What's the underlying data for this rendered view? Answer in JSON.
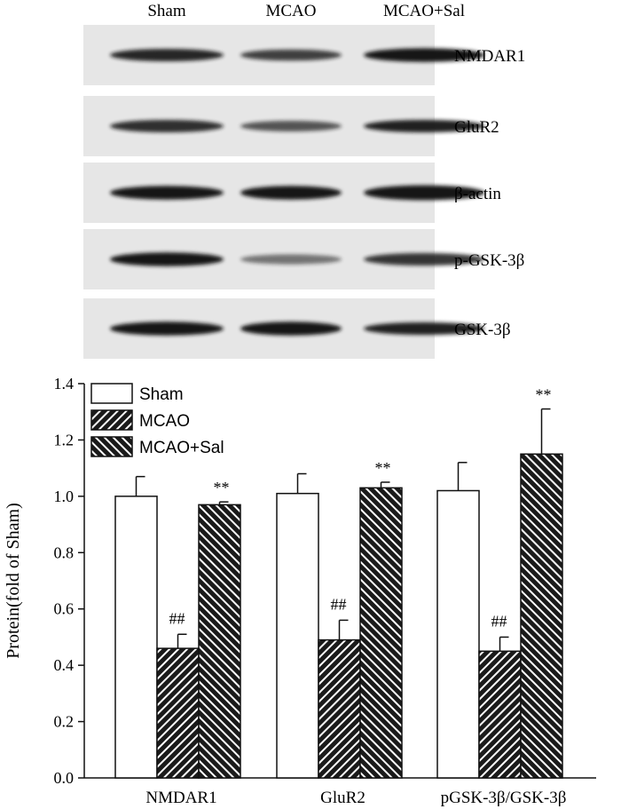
{
  "blot": {
    "lanes": [
      "Sham",
      "MCAO",
      "MCAO+Sal"
    ],
    "rows": [
      {
        "protein": "NMDAR1",
        "intensity": [
          0.92,
          0.8,
          1.0
        ],
        "band_height": [
          1.0,
          0.9,
          1.1
        ]
      },
      {
        "protein": "GluR2",
        "intensity": [
          0.88,
          0.7,
          0.95
        ],
        "band_height": [
          1.0,
          0.85,
          1.0
        ]
      },
      {
        "protein": "β-actin",
        "intensity": [
          1.0,
          1.0,
          1.0
        ],
        "band_height": [
          1.1,
          1.1,
          1.2
        ]
      },
      {
        "protein": "p-GSK-3β",
        "intensity": [
          1.0,
          0.55,
          0.85
        ],
        "band_height": [
          1.1,
          0.8,
          1.0
        ]
      },
      {
        "protein": "GSK-3β",
        "intensity": [
          1.0,
          1.0,
          0.95
        ],
        "band_height": [
          1.1,
          1.1,
          1.0
        ]
      }
    ]
  },
  "chart_data": {
    "type": "bar",
    "categories": [
      "NMDAR1",
      "GluR2",
      "pGSK-3β/GSK-3β"
    ],
    "series": [
      {
        "name": "Sham",
        "pattern": "open",
        "values": [
          1.0,
          1.01,
          1.02
        ],
        "errors": [
          0.07,
          0.07,
          0.1
        ]
      },
      {
        "name": "MCAO",
        "pattern": "hatch-right",
        "values": [
          0.46,
          0.49,
          0.45
        ],
        "errors": [
          0.05,
          0.07,
          0.05
        ]
      },
      {
        "name": "MCAO+Sal",
        "pattern": "hatch-left",
        "values": [
          0.97,
          1.03,
          1.15
        ],
        "errors": [
          0.01,
          0.02,
          0.16
        ]
      }
    ],
    "annotations": {
      "MCAO": [
        "##",
        "##",
        "##"
      ],
      "MCAO+Sal": [
        "**",
        "**",
        "**"
      ]
    },
    "ylabel": "Protein(fold of Sham)",
    "xlabel": "",
    "ylim": [
      0,
      1.4
    ],
    "yticks": [
      "0.0",
      "0.2",
      "0.4",
      "0.6",
      "0.8",
      "1.0",
      "1.2",
      "1.4"
    ],
    "legend": "top-left",
    "grid": false,
    "colors": {
      "open": "#ffffff",
      "line": "#111111",
      "hatch_bg": "#1a1a1a",
      "blot_bg": "#e6e6e6",
      "band": "#151515"
    }
  }
}
